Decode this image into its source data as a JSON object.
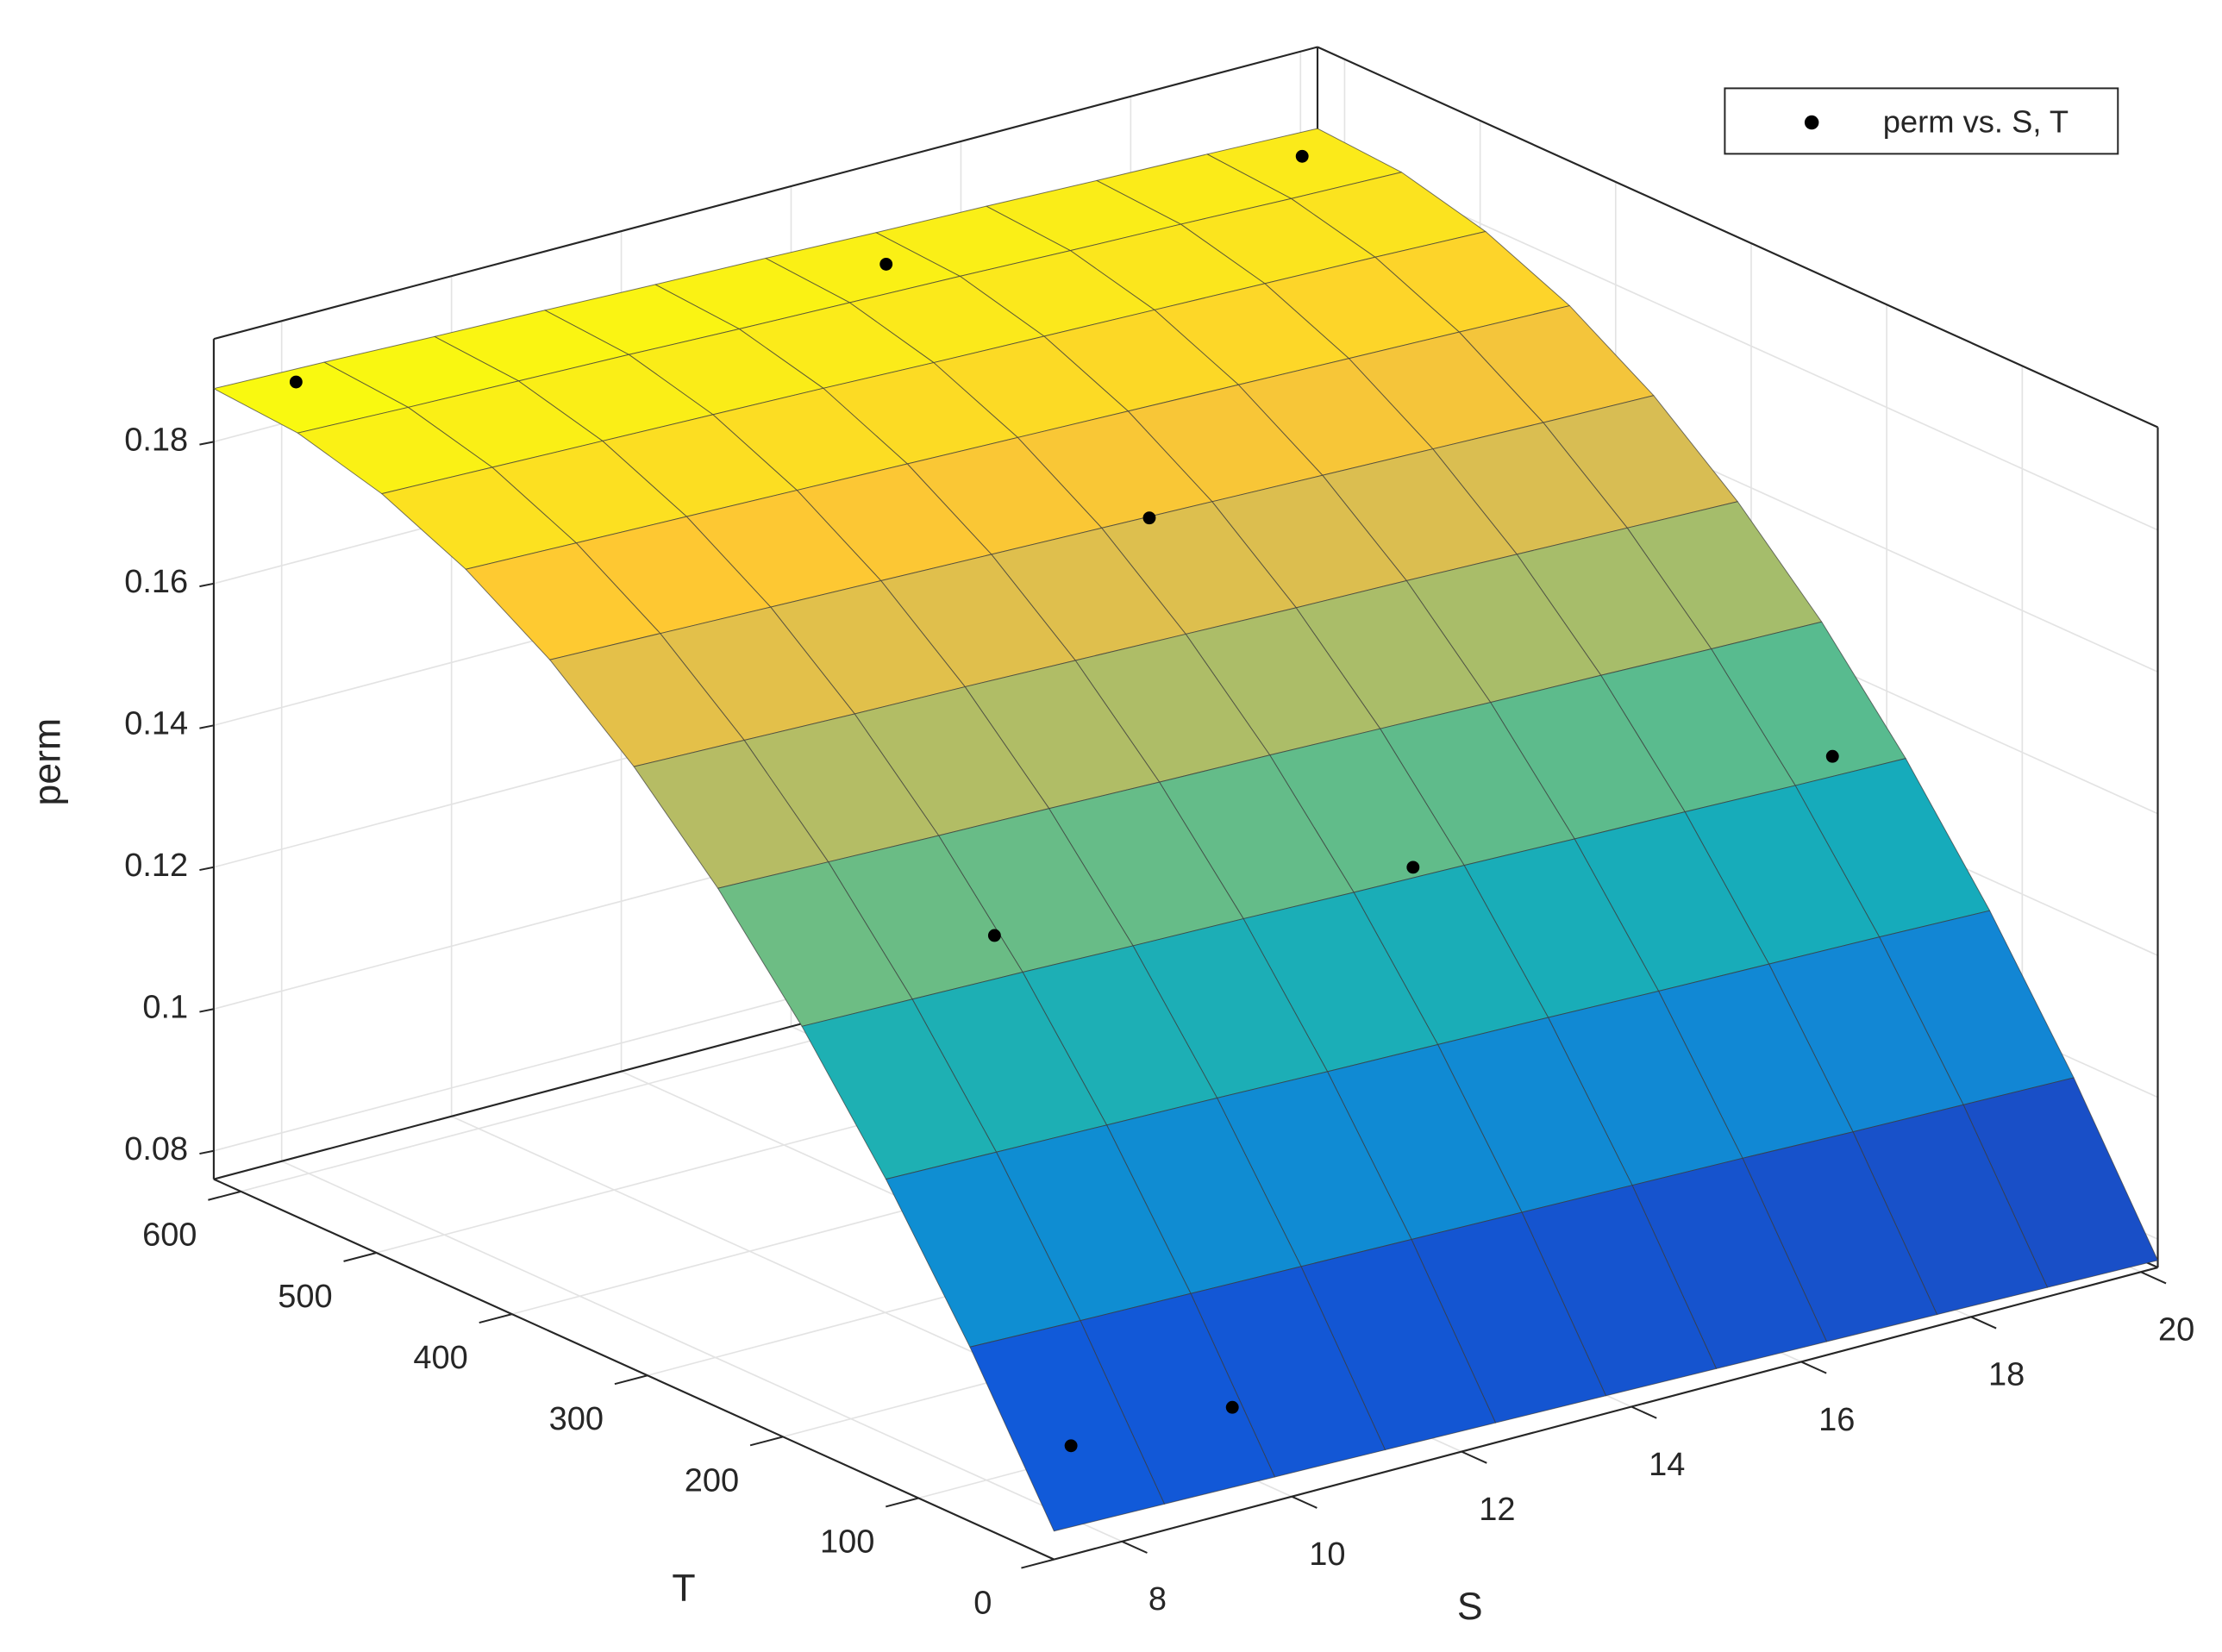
{
  "chart_data": {
    "type": "surface3d",
    "xlabel": "S",
    "ylabel": "T",
    "zlabel": "perm",
    "xlim": [
      7.2,
      20.2
    ],
    "ylim": [
      0,
      620
    ],
    "zlim": [
      0.076,
      0.1945
    ],
    "xticks": [
      8,
      10,
      12,
      14,
      16,
      18,
      20
    ],
    "yticks": [
      0,
      100,
      200,
      300,
      400,
      500,
      600
    ],
    "zticks": [
      0.08,
      0.1,
      0.12,
      0.14,
      0.16,
      0.18
    ],
    "grid": true,
    "legend": "northeast",
    "colormap": [
      "#352a87",
      "#0f5cdd",
      "#1481d6",
      "#06a4ca",
      "#2eb7a4",
      "#87bf77",
      "#d1bb59",
      "#fec832",
      "#f9fb0e"
    ],
    "surface": {
      "x": [
        7.2,
        8.5,
        9.8,
        11.1,
        12.4,
        13.7,
        15,
        16.3,
        17.6,
        18.9,
        20.2
      ],
      "y": [
        0,
        62,
        124,
        186,
        248,
        310,
        372,
        434,
        496,
        558,
        620
      ],
      "z": [
        [
          0.08,
          0.0797,
          0.0794,
          0.0791,
          0.0788,
          0.0785,
          0.0782,
          0.0779,
          0.0776,
          0.0773,
          0.077
        ],
        [
          0.1006,
          0.1002,
          0.0999,
          0.0996,
          0.0993,
          0.099,
          0.0987,
          0.0984,
          0.098,
          0.0977,
          0.0974
        ],
        [
          0.1189,
          0.1186,
          0.1183,
          0.118,
          0.1176,
          0.1173,
          0.117,
          0.1166,
          0.1163,
          0.116,
          0.1156
        ],
        [
          0.1351,
          0.1348,
          0.1345,
          0.1341,
          0.1338,
          0.1334,
          0.1331,
          0.1327,
          0.1324,
          0.132,
          0.1317
        ],
        [
          0.1492,
          0.1488,
          0.1484,
          0.1481,
          0.1477,
          0.1474,
          0.147,
          0.1466,
          0.1463,
          0.1459,
          0.1456
        ],
        [
          0.161,
          0.1606,
          0.1602,
          0.1599,
          0.1595,
          0.1591,
          0.1587,
          0.1584,
          0.158,
          0.1576,
          0.1572
        ],
        [
          0.1707,
          0.1703,
          0.1699,
          0.1695,
          0.1691,
          0.1687,
          0.1683,
          0.1679,
          0.1675,
          0.1671,
          0.1668
        ],
        [
          0.1781,
          0.1777,
          0.1773,
          0.1769,
          0.1765,
          0.1761,
          0.1757,
          0.1753,
          0.1749,
          0.1745,
          0.1741
        ],
        [
          0.1834,
          0.183,
          0.1826,
          0.1822,
          0.1818,
          0.1813,
          0.1809,
          0.1805,
          0.1801,
          0.1797,
          0.1792
        ],
        [
          0.1866,
          0.1861,
          0.1857,
          0.1853,
          0.1848,
          0.1844,
          0.184,
          0.1835,
          0.1831,
          0.1826,
          0.1822
        ],
        [
          0.1875,
          0.1871,
          0.1866,
          0.1862,
          0.1857,
          0.1853,
          0.1848,
          0.1844,
          0.1839,
          0.1835,
          0.183
        ]
      ]
    },
    "series": [
      {
        "name": "perm vs. S, T",
        "color": "#000000",
        "x": [
          7.85,
          14.8,
          19.7,
          10.17,
          15.1,
          20.04,
          9.3,
          7.4,
          17.9
        ],
        "y": [
          600,
          600,
          600,
          230,
          230,
          230,
          0,
          0,
          600
        ],
        "z": [
          0.1881,
          0.1827,
          0.1824,
          0.1347,
          0.1287,
          0.1287,
          0.0908,
          0.0914,
          0.1371
        ]
      }
    ]
  }
}
